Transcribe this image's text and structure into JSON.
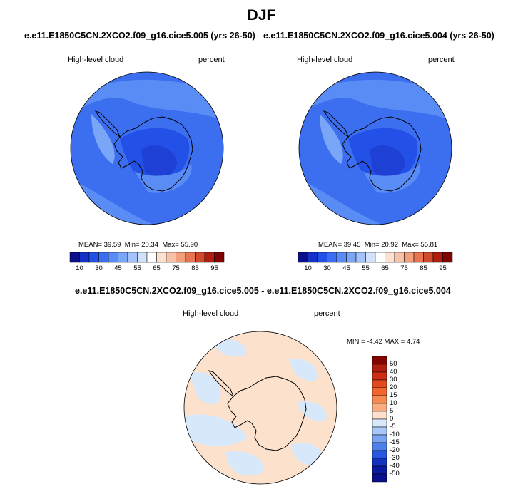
{
  "figure": {
    "title": "DJF",
    "colors": {
      "coast": "#000000",
      "background": "#ffffff"
    }
  },
  "panels": [
    {
      "title": "e.e11.E1850C5CN.2XCO2.f09_g16.cice5.005 (yrs 26-50)",
      "variable": "High-level cloud",
      "units": "percent",
      "mean_label": "MEAN=",
      "mean": "39.59",
      "min_label": "Min=",
      "min": "20.34",
      "max_label": "Max=",
      "max": "55.90"
    },
    {
      "title": "e.e11.E1850C5CN.2XCO2.f09_g16.cice5.004 (yrs 26-50)",
      "variable": "High-level cloud",
      "units": "percent",
      "mean_label": "MEAN=",
      "mean": "39.45",
      "min_label": "Min=",
      "min": "20.92",
      "max_label": "Max=",
      "max": "55.81"
    }
  ],
  "difference_panel": {
    "title": "e.e11.E1850C5CN.2XCO2.f09_g16.cice5.005 - e.e11.E1850C5CN.2XCO2.f09_g16.cice5.004",
    "variable": "High-level cloud",
    "units": "percent",
    "min_label": "MIN =",
    "min": "-4.42",
    "max_label": "MAX =",
    "max": "4.74"
  },
  "colorbar_abs": {
    "tick_labels": [
      "10",
      "30",
      "45",
      "55",
      "65",
      "75",
      "85",
      "95"
    ],
    "colors": [
      "#0a0f8c",
      "#1432c8",
      "#2350e6",
      "#3c6ef0",
      "#5a8cf5",
      "#7aa6f8",
      "#a4c3fa",
      "#d2e2fc",
      "#ffffff",
      "#fce0d0",
      "#f8c2a8",
      "#f2a07c",
      "#e87552",
      "#d24a2c",
      "#b01e10",
      "#820400"
    ]
  },
  "colorbar_diff": {
    "tick_labels": [
      "50",
      "40",
      "30",
      "20",
      "15",
      "10",
      "5",
      "0",
      "-5",
      "-10",
      "-15",
      "-20",
      "-30",
      "-40",
      "-50"
    ],
    "colors": [
      "#820400",
      "#b01e10",
      "#cc2d14",
      "#e04a1e",
      "#f0662c",
      "#f58a52",
      "#f8ad80",
      "#fce1cc",
      "#d8e8fb",
      "#a9c7f8",
      "#7aa4f2",
      "#4e80ec",
      "#2858e0",
      "#1434c0",
      "#0a1aa0",
      "#0a0f8c"
    ]
  },
  "map_colors": {
    "ocean": "#3c6ef0",
    "light": "#5a8cf5",
    "lighter": "#7aa6f8",
    "dark": "#2350e6",
    "diff_pos": "#fce1cc",
    "diff_neg": "#d8e8fb"
  }
}
